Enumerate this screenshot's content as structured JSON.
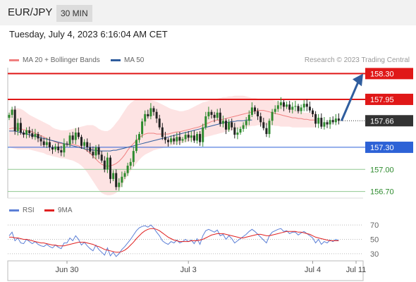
{
  "header": {
    "pair": "EUR/JPY",
    "timeframe": "30 MIN"
  },
  "date_label": "Tuesday, July 4, 2023 6:16:04 AM CET",
  "legend": {
    "ma20": {
      "label": "MA 20 + Bollinger Bands",
      "color": "#f08080"
    },
    "ma50": {
      "label": "MA 50",
      "color": "#2f5d9e"
    },
    "rsi": {
      "label": "RSI",
      "color": "#5b7fd6"
    },
    "rsi_ma": {
      "label": "9MA",
      "color": "#e02020"
    }
  },
  "credit": "Research © 2023 Trading Central",
  "chart_data": [
    {
      "type": "candlestick",
      "ylim": [
        156.62,
        158.38
      ],
      "colors": {
        "up": "#2e8b2e",
        "down": "#222222",
        "band": "#fde3e3",
        "resistance": "#e01818",
        "pivot": "#2d62d6",
        "support": "#90c890",
        "arrow": "#2f5d9e"
      },
      "x_ticks": [
        {
          "label": "Jun 30",
          "index": 20
        },
        {
          "label": "Jul 3",
          "index": 62
        },
        {
          "label": "Jul 4",
          "index": 105
        },
        {
          "label": "Jul 11",
          "index": 120
        }
      ],
      "levels": [
        {
          "label": "158.30",
          "value": 158.3,
          "kind": "resistance"
        },
        {
          "label": "157.95",
          "value": 157.95,
          "kind": "resistance"
        },
        {
          "label": "157.66",
          "value": 157.66,
          "kind": "last"
        },
        {
          "label": "157.30",
          "value": 157.3,
          "kind": "pivot"
        },
        {
          "label": "157.00",
          "value": 157.0,
          "kind": "support"
        },
        {
          "label": "156.70",
          "value": 156.7,
          "kind": "support"
        }
      ],
      "close": [
        157.74,
        157.81,
        157.52,
        157.63,
        157.5,
        157.47,
        157.53,
        157.49,
        157.44,
        157.48,
        157.42,
        157.38,
        157.33,
        157.37,
        157.3,
        157.27,
        157.31,
        157.26,
        157.23,
        157.35,
        157.34,
        157.46,
        157.4,
        157.5,
        157.44,
        157.32,
        157.37,
        157.3,
        157.24,
        157.19,
        157.3,
        157.2,
        157.12,
        157.0,
        157.16,
        156.87,
        156.95,
        156.76,
        156.82,
        156.9,
        156.95,
        157.05,
        157.1,
        157.25,
        157.4,
        157.48,
        157.65,
        157.75,
        157.72,
        157.83,
        157.78,
        157.69,
        157.57,
        157.44,
        157.4,
        157.37,
        157.42,
        157.38,
        157.44,
        157.39,
        157.41,
        157.47,
        157.43,
        157.46,
        157.39,
        157.48,
        157.37,
        157.57,
        157.72,
        157.78,
        157.74,
        157.7,
        157.77,
        157.62,
        157.66,
        157.54,
        157.64,
        157.57,
        157.47,
        157.5,
        157.55,
        157.6,
        157.66,
        157.74,
        157.84,
        157.79,
        157.72,
        157.64,
        157.56,
        157.48,
        157.66,
        157.78,
        157.82,
        157.87,
        157.91,
        157.85,
        157.88,
        157.81,
        157.85,
        157.86,
        157.79,
        157.84,
        157.89,
        157.85,
        157.8,
        157.75,
        157.62,
        157.7,
        157.58,
        157.64,
        157.61,
        157.67,
        157.64,
        157.69,
        157.66
      ],
      "ma20": [
        157.55,
        157.56,
        157.56,
        157.56,
        157.55,
        157.54,
        157.53,
        157.52,
        157.51,
        157.49,
        157.47,
        157.46,
        157.44,
        157.42,
        157.4,
        157.39,
        157.37,
        157.36,
        157.35,
        157.35,
        157.34,
        157.34,
        157.34,
        157.33,
        157.32,
        157.3,
        157.28,
        157.25,
        157.22,
        157.18,
        157.14,
        157.1,
        157.07,
        157.05,
        157.04,
        157.05,
        157.06,
        157.08,
        157.11,
        157.15,
        157.2,
        157.26,
        157.31,
        157.35,
        157.39,
        157.43,
        157.46,
        157.48,
        157.49,
        157.49,
        157.49,
        157.48,
        157.48,
        157.48,
        157.48,
        157.48,
        157.49,
        157.5,
        157.51,
        157.51,
        157.52,
        157.53,
        157.54,
        157.55,
        157.56,
        157.57,
        157.58,
        157.6,
        157.62,
        157.63,
        157.65,
        157.66,
        157.67,
        157.67,
        157.68,
        157.69,
        157.7,
        157.71,
        157.72,
        157.73,
        157.74,
        157.75,
        157.76,
        157.77,
        157.78,
        157.79,
        157.8,
        157.8,
        157.8,
        157.79,
        157.78,
        157.77,
        157.76,
        157.75,
        157.74,
        157.73,
        157.72,
        157.71,
        157.7,
        157.7,
        157.69,
        157.69,
        157.68,
        157.68,
        157.67,
        157.67,
        157.67
      ],
      "ma50": [
        157.52,
        157.52,
        157.52,
        157.51,
        157.5,
        157.49,
        157.48,
        157.47,
        157.46,
        157.45,
        157.44,
        157.43,
        157.42,
        157.41,
        157.4,
        157.39,
        157.38,
        157.37,
        157.36,
        157.35,
        157.34,
        157.33,
        157.32,
        157.31,
        157.3,
        157.29,
        157.28,
        157.27,
        157.27,
        157.26,
        157.26,
        157.25,
        157.25,
        157.25,
        157.25,
        157.25,
        157.26,
        157.26,
        157.27,
        157.28,
        157.29,
        157.3,
        157.31,
        157.32,
        157.33,
        157.34,
        157.35,
        157.36,
        157.37,
        157.38,
        157.39,
        157.4,
        157.41,
        157.42,
        157.43,
        157.44,
        157.45,
        157.46,
        157.47,
        157.48,
        157.49,
        157.5,
        157.51,
        157.52,
        157.53,
        157.54,
        157.55,
        157.56,
        157.57,
        157.58,
        157.59,
        157.6,
        157.61,
        157.62,
        157.63,
        157.64,
        157.64,
        157.65,
        157.65,
        157.66,
        157.66,
        157.66,
        157.67,
        157.67,
        157.67
      ],
      "bb_upper": [
        157.8,
        157.82,
        157.83,
        157.83,
        157.82,
        157.8,
        157.77,
        157.74,
        157.72,
        157.7,
        157.68,
        157.66,
        157.64,
        157.62,
        157.6,
        157.57,
        157.55,
        157.54,
        157.53,
        157.53,
        157.53,
        157.54,
        157.55,
        157.56,
        157.57,
        157.58,
        157.59,
        157.6,
        157.6,
        157.6,
        157.58,
        157.55,
        157.53,
        157.52,
        157.52,
        157.54,
        157.58,
        157.63,
        157.68,
        157.74,
        157.8,
        157.86,
        157.9,
        157.93,
        157.95,
        157.96,
        157.96,
        157.96,
        157.95,
        157.94,
        157.93,
        157.92,
        157.9,
        157.88,
        157.86,
        157.84,
        157.82,
        157.81,
        157.8,
        157.79,
        157.79,
        157.8,
        157.81,
        157.83,
        157.85,
        157.87,
        157.89,
        157.91,
        157.92,
        157.93,
        157.94,
        157.95,
        157.96,
        157.97,
        157.98,
        157.98,
        157.99,
        157.99,
        158.0,
        158.0,
        158.0,
        158.0,
        157.99,
        157.98,
        157.97,
        157.97,
        157.96,
        157.96,
        157.96,
        157.95,
        157.95,
        157.94,
        157.93,
        157.92,
        157.9,
        157.88,
        157.86,
        157.84,
        157.82,
        157.8,
        157.79,
        157.78,
        157.77,
        157.77,
        157.77,
        157.77,
        157.77
      ],
      "bb_lower": [
        157.3,
        157.29,
        157.28,
        157.27,
        157.27,
        157.27,
        157.27,
        157.27,
        157.26,
        157.25,
        157.24,
        157.23,
        157.22,
        157.2,
        157.19,
        157.18,
        157.17,
        157.16,
        157.15,
        157.15,
        157.14,
        157.13,
        157.12,
        157.1,
        157.08,
        157.05,
        157.01,
        156.96,
        156.9,
        156.84,
        156.78,
        156.72,
        156.68,
        156.66,
        156.65,
        156.65,
        156.66,
        156.68,
        156.72,
        156.78,
        156.85,
        156.92,
        156.98,
        157.03,
        157.08,
        157.13,
        157.17,
        157.2,
        157.22,
        157.24,
        157.26,
        157.27,
        157.28,
        157.29,
        157.3,
        157.31,
        157.32,
        157.33,
        157.34,
        157.35,
        157.36,
        157.37,
        157.38,
        157.39,
        157.4,
        157.41,
        157.42,
        157.43,
        157.44,
        157.45,
        157.46,
        157.47,
        157.48,
        157.49,
        157.5,
        157.51,
        157.52,
        157.53,
        157.54,
        157.55,
        157.56,
        157.57,
        157.58,
        157.58,
        157.59,
        157.59,
        157.6,
        157.6,
        157.6,
        157.6,
        157.6,
        157.6,
        157.59,
        157.59,
        157.58,
        157.58,
        157.58,
        157.58,
        157.57,
        157.57,
        157.57,
        157.57,
        157.57,
        157.57,
        157.57,
        157.57,
        157.57
      ]
    },
    {
      "type": "line",
      "ylim": [
        22,
        78
      ],
      "y_ticks": [
        70,
        50,
        30
      ],
      "series": [
        {
          "name": "RSI",
          "color": "#5b7fd6",
          "values": [
            55,
            60,
            48,
            52,
            45,
            44,
            50,
            47,
            44,
            47,
            43,
            41,
            40,
            43,
            40,
            38,
            42,
            39,
            37,
            45,
            45,
            52,
            48,
            55,
            50,
            42,
            46,
            41,
            37,
            34,
            42,
            36,
            32,
            28,
            38,
            27,
            32,
            26,
            30,
            36,
            40,
            45,
            50,
            56,
            62,
            66,
            68,
            69,
            67,
            70,
            66,
            60,
            55,
            48,
            45,
            43,
            47,
            45,
            49,
            45,
            47,
            50,
            47,
            49,
            44,
            51,
            43,
            55,
            62,
            64,
            62,
            60,
            63,
            55,
            57,
            50,
            55,
            51,
            45,
            48,
            51,
            54,
            57,
            61,
            64,
            61,
            57,
            53,
            49,
            45,
            55,
            60,
            62,
            64,
            65,
            61,
            62,
            58,
            60,
            60,
            56,
            59,
            61,
            58,
            55,
            52,
            45,
            50,
            43,
            47,
            45,
            49,
            47,
            50,
            48
          ]
        },
        {
          "name": "9MA",
          "color": "#e02020",
          "values": [
            53,
            53,
            52,
            52,
            51,
            50,
            50,
            49,
            48,
            47,
            46,
            45,
            45,
            44,
            43,
            42,
            42,
            41,
            41,
            41,
            42,
            43,
            44,
            45,
            46,
            46,
            46,
            45,
            44,
            43,
            41,
            40,
            38,
            36,
            35,
            34,
            33,
            32,
            32,
            33,
            35,
            38,
            42,
            46,
            51,
            55,
            59,
            62,
            64,
            65,
            65,
            64,
            62,
            59,
            56,
            53,
            51,
            49,
            48,
            47,
            47,
            47,
            47,
            48,
            48,
            48,
            49,
            50,
            52,
            54,
            56,
            57,
            58,
            58,
            58,
            57,
            56,
            55,
            54,
            53,
            52,
            52,
            53,
            54,
            55,
            56,
            57,
            57,
            56,
            55,
            55,
            56,
            57,
            58,
            59,
            60,
            61,
            61,
            61,
            61,
            60,
            60,
            59,
            58,
            57,
            55,
            53,
            52,
            51,
            50,
            49,
            48,
            48,
            48,
            48
          ]
        }
      ]
    }
  ]
}
